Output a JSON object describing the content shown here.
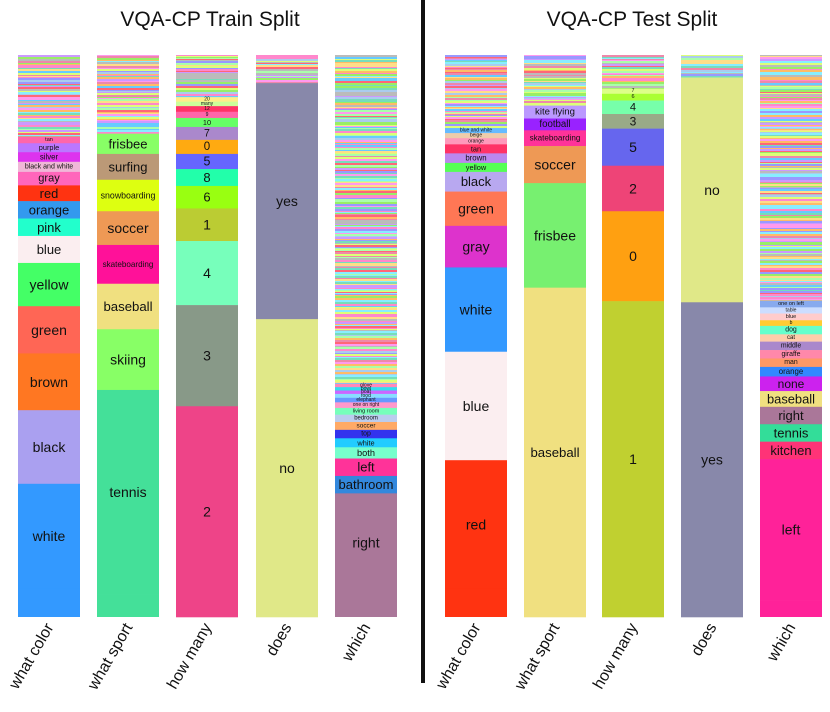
{
  "chart_data": {
    "type": "stacked-bar",
    "value_unit": "fraction of answers per question type",
    "divider_color": "#111111",
    "panels": [
      {
        "title": "VQA-CP Train Split",
        "bars": [
          {
            "label": "what color",
            "tail_fraction": 0.145,
            "segments": [
              {
                "answer": "tan",
                "value": 0.012,
                "color": "#ff66aa"
              },
              {
                "answer": "purple",
                "value": 0.016,
                "color": "#bb77ff"
              },
              {
                "answer": "silver",
                "value": 0.017,
                "color": "#dd33ee"
              },
              {
                "answer": "black and white",
                "value": 0.018,
                "color": "#f0b8d8"
              },
              {
                "answer": "gray",
                "value": 0.024,
                "color": "#ff66bb"
              },
              {
                "answer": "red",
                "value": 0.028,
                "color": "#ff3311"
              },
              {
                "answer": "orange",
                "value": 0.031,
                "color": "#3399ee"
              },
              {
                "answer": "pink",
                "value": 0.031,
                "color": "#22ffcc"
              },
              {
                "answer": "blue",
                "value": 0.048,
                "color": "#fbeef0"
              },
              {
                "answer": "yellow",
                "value": 0.077,
                "color": "#44ff66"
              },
              {
                "answer": "green",
                "value": 0.084,
                "color": "#ff6655"
              },
              {
                "answer": "brown",
                "value": 0.101,
                "color": "#ff7722"
              },
              {
                "answer": "black",
                "value": 0.131,
                "color": "#aaa0f0"
              },
              {
                "answer": "white",
                "value": 0.186,
                "color": "#3399ff"
              }
            ]
          },
          {
            "label": "what sport",
            "tail_fraction": 0.14,
            "segments": [
              {
                "answer": "frisbee",
                "value": 0.036,
                "color": "#88ff66"
              },
              {
                "answer": "surfing",
                "value": 0.046,
                "color": "#bb9977"
              },
              {
                "answer": "snowboarding",
                "value": 0.056,
                "color": "#ddff11"
              },
              {
                "answer": "soccer",
                "value": 0.06,
                "color": "#ee9955"
              },
              {
                "answer": "skateboarding",
                "value": 0.069,
                "color": "#ff1199"
              },
              {
                "answer": "baseball",
                "value": 0.081,
                "color": "#f0e080"
              },
              {
                "answer": "skiing",
                "value": 0.108,
                "color": "#88ff66"
              },
              {
                "answer": "tennis",
                "value": 0.364,
                "color": "#44e099"
              }
            ]
          },
          {
            "label": "how many",
            "tail_fraction": 0.075,
            "segments": [
              {
                "answer": "20",
                "value": 0.008,
                "color": "#ffee88"
              },
              {
                "answer": "many",
                "value": 0.008,
                "color": "#ccff99"
              },
              {
                "answer": "12",
                "value": 0.01,
                "color": "#ff3366"
              },
              {
                "answer": "9",
                "value": 0.011,
                "color": "#ff66aa"
              },
              {
                "answer": "10",
                "value": 0.016,
                "color": "#66ff66"
              },
              {
                "answer": "7",
                "value": 0.023,
                "color": "#aa88cc"
              },
              {
                "answer": "0",
                "value": 0.025,
                "color": "#ffaa11"
              },
              {
                "answer": "5",
                "value": 0.027,
                "color": "#6666ff"
              },
              {
                "answer": "8",
                "value": 0.03,
                "color": "#22ffaa"
              },
              {
                "answer": "6",
                "value": 0.04,
                "color": "#99ff11"
              },
              {
                "answer": "1",
                "value": 0.058,
                "color": "#bbcc33"
              },
              {
                "answer": "4",
                "value": 0.114,
                "color": "#77ffbb"
              },
              {
                "answer": "3",
                "value": 0.18,
                "color": "#889988"
              },
              {
                "answer": "2",
                "value": 0.375,
                "color": "#ee4488"
              }
            ]
          },
          {
            "label": "does",
            "tail_fraction": 0.05,
            "segments": [
              {
                "answer": "yes",
                "value": 0.42,
                "color": "#8888aa"
              },
              {
                "answer": "no",
                "value": 0.53,
                "color": "#e0e888"
              }
            ]
          },
          {
            "label": "which",
            "tail_fraction": 0.585,
            "segments": [
              {
                "answer": "glove",
                "value": 0.006,
                "color": "#ff88bb"
              },
              {
                "answer": "bowl",
                "value": 0.006,
                "color": "#33ddee"
              },
              {
                "answer": "boat",
                "value": 0.006,
                "color": "#cc66ff"
              },
              {
                "answer": "food",
                "value": 0.007,
                "color": "#88ddff"
              },
              {
                "answer": "elephant",
                "value": 0.008,
                "color": "#6699ff"
              },
              {
                "answer": "one on right",
                "value": 0.01,
                "color": "#ff99cc"
              },
              {
                "answer": "living room",
                "value": 0.012,
                "color": "#77ffbb"
              },
              {
                "answer": "bedroom",
                "value": 0.013,
                "color": "#bbccee"
              },
              {
                "answer": "soccer",
                "value": 0.014,
                "color": "#ffaa66"
              },
              {
                "answer": "top",
                "value": 0.015,
                "color": "#3333ee"
              },
              {
                "answer": "white",
                "value": 0.016,
                "color": "#22ccff"
              },
              {
                "answer": "both",
                "value": 0.02,
                "color": "#77ffcc"
              },
              {
                "answer": "left",
                "value": 0.031,
                "color": "#ff3399"
              },
              {
                "answer": "bathroom",
                "value": 0.031,
                "color": "#3388dd"
              },
              {
                "answer": "right",
                "value": 0.175,
                "color": "#aa7799"
              }
            ]
          }
        ]
      },
      {
        "title": "VQA-CP Test Split",
        "bars": [
          {
            "label": "what color",
            "tail_fraction": 0.13,
            "segments": [
              {
                "answer": "blue and white",
                "value": 0.009,
                "color": "#66bbff"
              },
              {
                "answer": "beige",
                "value": 0.009,
                "color": "#eeccaa"
              },
              {
                "answer": "orange",
                "value": 0.011,
                "color": "#ff99bb"
              },
              {
                "answer": "tan",
                "value": 0.016,
                "color": "#ff3366"
              },
              {
                "answer": "brown",
                "value": 0.017,
                "color": "#bb88ee"
              },
              {
                "answer": "yellow",
                "value": 0.016,
                "color": "#55ff55"
              },
              {
                "answer": "black",
                "value": 0.035,
                "color": "#b8a8f0"
              },
              {
                "answer": "green",
                "value": 0.061,
                "color": "#ff7755"
              },
              {
                "answer": "gray",
                "value": 0.074,
                "color": "#dd33cc"
              },
              {
                "answer": "white",
                "value": 0.15,
                "color": "#3399ff"
              },
              {
                "answer": "blue",
                "value": 0.193,
                "color": "#fbeef0"
              },
              {
                "answer": "red",
                "value": 0.229,
                "color": "#ff3311"
              }
            ]
          },
          {
            "label": "what sport",
            "tail_fraction": 0.09,
            "segments": [
              {
                "answer": "kite flying",
                "value": 0.023,
                "color": "#bb99ff"
              },
              {
                "answer": "football",
                "value": 0.021,
                "color": "#9922ff"
              },
              {
                "answer": "skateboarding",
                "value": 0.028,
                "color": "#ff3399"
              },
              {
                "answer": "soccer",
                "value": 0.066,
                "color": "#ee9955"
              },
              {
                "answer": "frisbee",
                "value": 0.186,
                "color": "#77f070"
              },
              {
                "answer": "baseball",
                "value": 0.586,
                "color": "#f0e080"
              }
            ]
          },
          {
            "label": "how many",
            "tail_fraction": 0.06,
            "segments": [
              {
                "answer": "7",
                "value": 0.009,
                "color": "#ddff88"
              },
              {
                "answer": "6",
                "value": 0.012,
                "color": "#aaff33"
              },
              {
                "answer": "4",
                "value": 0.024,
                "color": "#77ffaa"
              },
              {
                "answer": "3",
                "value": 0.026,
                "color": "#99aa88"
              },
              {
                "answer": "5",
                "value": 0.066,
                "color": "#6666ee"
              },
              {
                "answer": "2",
                "value": 0.081,
                "color": "#ee4477"
              },
              {
                "answer": "0",
                "value": 0.16,
                "color": "#ffa011"
              },
              {
                "answer": "1",
                "value": 0.562,
                "color": "#c0d030"
              }
            ]
          },
          {
            "label": "does",
            "tail_fraction": 0.04,
            "segments": [
              {
                "answer": "no",
                "value": 0.4,
                "color": "#e0e888"
              },
              {
                "answer": "yes",
                "value": 0.56,
                "color": "#8888aa"
              }
            ]
          },
          {
            "label": "which",
            "tail_fraction": 0.437,
            "segments": [
              {
                "answer": "one on left",
                "value": 0.012,
                "color": "#88aaee"
              },
              {
                "answer": "table",
                "value": 0.011,
                "color": "#ccddff"
              },
              {
                "answer": "blue",
                "value": 0.012,
                "color": "#ffcccc"
              },
              {
                "answer": "b",
                "value": 0.01,
                "color": "#ffcc33"
              },
              {
                "answer": "dog",
                "value": 0.015,
                "color": "#66ffcc"
              },
              {
                "answer": "cat",
                "value": 0.013,
                "color": "#ffccaa"
              },
              {
                "answer": "middle",
                "value": 0.015,
                "color": "#aa88cc"
              },
              {
                "answer": "giraffe",
                "value": 0.015,
                "color": "#ff88aa"
              },
              {
                "answer": "man",
                "value": 0.015,
                "color": "#ff9966"
              },
              {
                "answer": "orange",
                "value": 0.017,
                "color": "#3388ff"
              },
              {
                "answer": "none",
                "value": 0.026,
                "color": "#cc22ee"
              },
              {
                "answer": "baseball",
                "value": 0.028,
                "color": "#f0e080"
              },
              {
                "answer": "right",
                "value": 0.031,
                "color": "#aa7799"
              },
              {
                "answer": "tennis",
                "value": 0.031,
                "color": "#33dd99"
              },
              {
                "answer": "kitchen",
                "value": 0.031,
                "color": "#ff3377"
              },
              {
                "answer": "left",
                "value": 0.251,
                "color": "#ff2299"
              }
            ]
          }
        ]
      }
    ]
  }
}
